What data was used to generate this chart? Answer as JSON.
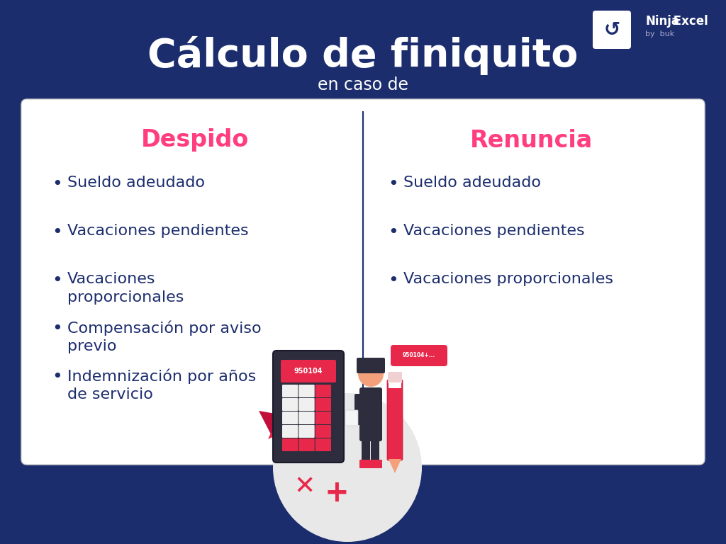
{
  "bg_color": "#1c2d6e",
  "title": "Cálculo de finiquito",
  "subtitle": "en caso de",
  "title_color": "#ffffff",
  "subtitle_color": "#ffffff",
  "title_fontsize": 40,
  "subtitle_fontsize": 17,
  "card_bg": "#ffffff",
  "card_border": "#d0d0d0",
  "left_header": "Despido",
  "right_header": "Renuncia",
  "header_color": "#ff3d7f",
  "header_fontsize": 24,
  "item_color": "#1c2d6e",
  "item_fontsize": 16,
  "left_items": [
    "Sueldo adeudado",
    "Vacaciones pendientes",
    "Vacaciones\nproporcionales",
    "Compensación por aviso\nprevio",
    "Indemnización por años\nde servicio"
  ],
  "right_items": [
    "Sueldo adeudado",
    "Vacaciones pendientes",
    "Vacaciones proporcionales"
  ],
  "divider_color": "#1c2d6e",
  "calc_body": "#2d2d3d",
  "calc_screen": "#e8284a",
  "calc_btn_pink": "#e8284a",
  "calc_btn_white": "#f0f0f0",
  "person_body": "#2d2d3d",
  "person_skin": "#f4a07a",
  "pencil_color": "#e8284a",
  "circle_bg": "#e8e8e8",
  "leaf_color": "#e8284a",
  "plus_color": "#e8284a",
  "bubble_color": "#e8284a"
}
